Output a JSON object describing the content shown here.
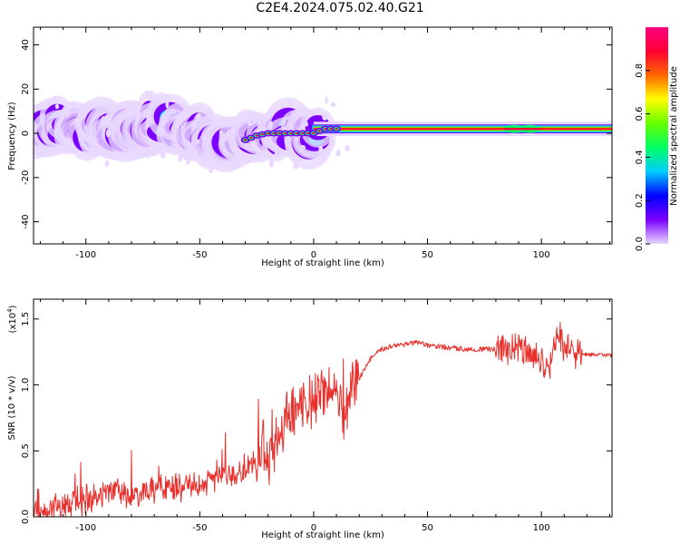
{
  "title": "C2E4.2024.075.02.40.G21",
  "chart_data": [
    {
      "type": "heatmap",
      "xlabel": "Height of straight line (km)",
      "ylabel": "Frequency (Hz)",
      "xlim": [
        -123,
        131
      ],
      "ylim": [
        -50,
        48
      ],
      "xticks": [
        -100,
        -50,
        0,
        50,
        100
      ],
      "yticks": [
        -40,
        -20,
        0,
        20,
        40
      ],
      "grid": false,
      "colorbar": {
        "label": "Normalized spectral amplitude",
        "range": [
          0.0,
          1.0
        ],
        "ticks": [
          0.0,
          0.2,
          0.4,
          0.6,
          0.8
        ],
        "colormap": [
          "#e8d8ff",
          "#7b00ff",
          "#0000ff",
          "#00ccff",
          "#00ff66",
          "#66ff00",
          "#ffff00",
          "#ff6600",
          "#ff0033",
          "#ff0080"
        ]
      },
      "ridge": {
        "x": [
          -123,
          -110,
          -100,
          -90,
          -80,
          -70,
          -60,
          -50,
          -45,
          -40,
          -35,
          -30,
          -25,
          -20,
          -10,
          0,
          5,
          10,
          20,
          50,
          80,
          100,
          110,
          131
        ],
        "y": [
          4,
          3,
          2,
          1,
          3,
          6,
          3,
          0,
          -3,
          -5,
          -2,
          -3,
          -1,
          0,
          0,
          0,
          2,
          2,
          2,
          2,
          2,
          2,
          2,
          2
        ]
      },
      "steady_band": {
        "x_start": 0,
        "x_end": 131,
        "y_center": 2,
        "y_halfwidth": 2
      }
    },
    {
      "type": "line",
      "xlabel": "Height of straight line (km)",
      "ylabel": "SNR (10 * v/v)",
      "y_multiplier_label": "(x10",
      "y_multiplier_exp": "4",
      "y_multiplier_close": ")",
      "xlim": [
        -123,
        131
      ],
      "ylim": [
        0,
        1.65
      ],
      "xticks": [
        -100,
        -50,
        0,
        50,
        100
      ],
      "yticks": [
        0.0,
        0.5,
        1.0,
        1.5
      ],
      "grid": false,
      "series": [
        {
          "color": "#e8302c",
          "x": [
            -123,
            -115,
            -110,
            -105,
            -100,
            -95,
            -90,
            -85,
            -80,
            -75,
            -70,
            -65,
            -60,
            -55,
            -50,
            -45,
            -40,
            -35,
            -30,
            -25,
            -22,
            -20,
            -18,
            -15,
            -12,
            -10,
            -5,
            0,
            5,
            10,
            13,
            15,
            18,
            20,
            25,
            30,
            35,
            40,
            45,
            50,
            60,
            70,
            80,
            85,
            90,
            95,
            100,
            103,
            105,
            108,
            110,
            113,
            115,
            120,
            125,
            131
          ],
          "y": [
            0.04,
            0.06,
            0.08,
            0.1,
            0.13,
            0.14,
            0.17,
            0.18,
            0.17,
            0.21,
            0.19,
            0.2,
            0.22,
            0.25,
            0.24,
            0.26,
            0.3,
            0.32,
            0.36,
            0.42,
            0.55,
            0.4,
            0.55,
            0.62,
            0.75,
            0.8,
            0.85,
            0.9,
            0.95,
            0.98,
            0.75,
            0.92,
            1.0,
            1.05,
            1.2,
            1.27,
            1.3,
            1.31,
            1.32,
            1.3,
            1.28,
            1.27,
            1.27,
            1.26,
            1.28,
            1.24,
            1.18,
            1.1,
            1.28,
            1.4,
            1.25,
            1.3,
            1.24,
            1.23,
            1.23,
            1.22
          ]
        }
      ]
    }
  ]
}
